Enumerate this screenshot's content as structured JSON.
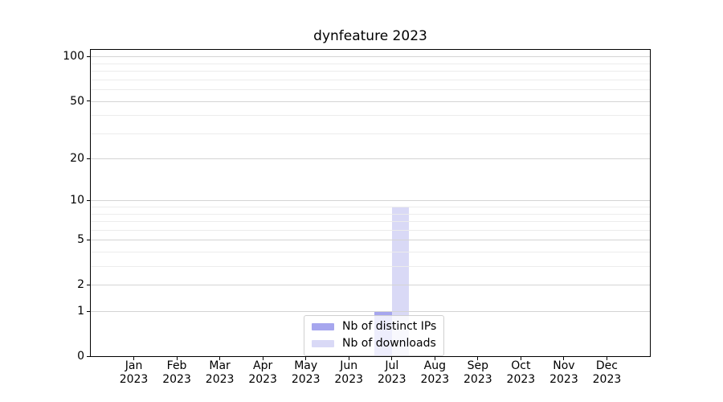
{
  "figure": {
    "title": "dynfeature 2023"
  },
  "chart_data": {
    "type": "bar",
    "title": "dynfeature 2023",
    "categories": [
      {
        "month": "Jan",
        "year": "2023"
      },
      {
        "month": "Feb",
        "year": "2023"
      },
      {
        "month": "Mar",
        "year": "2023"
      },
      {
        "month": "Apr",
        "year": "2023"
      },
      {
        "month": "May",
        "year": "2023"
      },
      {
        "month": "Jun",
        "year": "2023"
      },
      {
        "month": "Jul",
        "year": "2023"
      },
      {
        "month": "Aug",
        "year": "2023"
      },
      {
        "month": "Sep",
        "year": "2023"
      },
      {
        "month": "Oct",
        "year": "2023"
      },
      {
        "month": "Nov",
        "year": "2023"
      },
      {
        "month": "Dec",
        "year": "2023"
      }
    ],
    "series": [
      {
        "name": "Nb of distinct IPs",
        "color": "#a6a6ee",
        "values": [
          0,
          0,
          0,
          0,
          0,
          0,
          1,
          0,
          0,
          0,
          0,
          0
        ]
      },
      {
        "name": "Nb of downloads",
        "color": "#d9d9f6",
        "values": [
          0,
          0,
          0,
          0,
          0,
          0,
          9,
          0,
          0,
          0,
          0,
          0
        ]
      }
    ],
    "xlabel": "",
    "ylabel": "",
    "y_scale": "log1p",
    "ylim": [
      0,
      111
    ],
    "y_major_ticks": [
      0,
      1,
      2,
      5,
      10,
      20,
      50,
      100
    ],
    "y_minor_gridlines": [
      3,
      4,
      6,
      7,
      8,
      9,
      30,
      40,
      60,
      70,
      80,
      90
    ],
    "grid": "both",
    "legend_position": "lower center",
    "colors": {
      "major_grid": "#d4d4d4",
      "minor_grid": "#ececec",
      "spine": "#000000",
      "text": "#000000"
    }
  }
}
